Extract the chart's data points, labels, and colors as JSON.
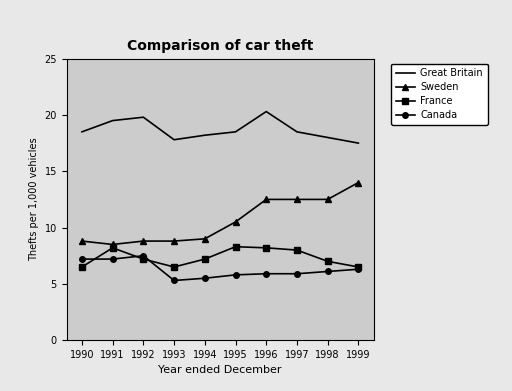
{
  "title": "Comparison of car theft",
  "xlabel": "Year ended December",
  "ylabel": "Thefts per 1,000 vehicles",
  "years": [
    1990,
    1991,
    1992,
    1993,
    1994,
    1995,
    1996,
    1997,
    1998,
    1999
  ],
  "great_britain": [
    18.5,
    19.5,
    19.8,
    17.8,
    18.2,
    18.5,
    20.3,
    18.5,
    18.0,
    17.5
  ],
  "sweden": [
    8.8,
    8.5,
    8.8,
    8.8,
    9.0,
    10.5,
    12.5,
    12.5,
    12.5,
    14.0
  ],
  "france": [
    6.5,
    8.2,
    7.2,
    6.5,
    7.2,
    8.3,
    8.2,
    8.0,
    7.0,
    6.5
  ],
  "canada": [
    7.2,
    7.2,
    7.5,
    5.3,
    5.5,
    5.8,
    5.9,
    5.9,
    6.1,
    6.3
  ],
  "bg_color": "#e8e8e8",
  "plot_bg_color": "#cccccc",
  "ylim": [
    0,
    25
  ],
  "yticks": [
    0,
    5,
    10,
    15,
    20,
    25
  ],
  "legend_labels": [
    "Great Britain",
    "Sweden",
    "France",
    "Canada"
  ],
  "line_color": "#000000"
}
